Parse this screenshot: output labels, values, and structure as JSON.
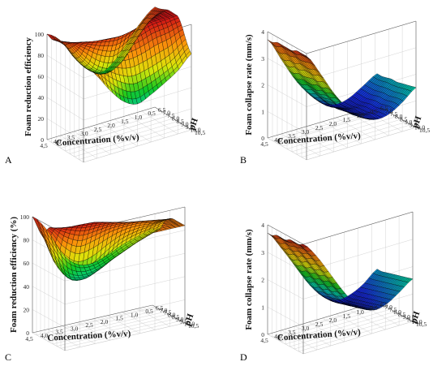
{
  "chart_data": [
    {
      "id": "A",
      "type": "surface3d",
      "panel_label": "A",
      "xlabel": "Concentration (%v/v)",
      "ylabel": "pH",
      "zlabel": "Foam reduction efficiency",
      "x_ticks": [
        "4,5",
        "4,0",
        "3,5",
        "3,0",
        "2,5",
        "2,0",
        "1,5",
        "1,0",
        "0,5"
      ],
      "y_ticks": [
        "6,5",
        "7,0",
        "7,5",
        "8,0",
        "8,5",
        "9,0",
        "9,5",
        "10,0",
        "10,5"
      ],
      "z_ticks": [
        "0",
        "20",
        "40",
        "60",
        "80",
        "100"
      ],
      "xlim": [
        0.5,
        4.5
      ],
      "ylim": [
        6.5,
        10.5
      ],
      "zlim": [
        0,
        100
      ],
      "surface": {
        "x": [
          4.5,
          4.0,
          3.5,
          3.0,
          2.5,
          2.0,
          1.5,
          1.0,
          0.5
        ],
        "y": [
          6.5,
          7.0,
          7.5,
          8.0,
          8.5,
          9.0,
          9.5,
          10.0,
          10.5
        ],
        "z": [
          [
            100,
            90,
            70,
            55,
            48,
            55,
            70,
            85,
            95
          ],
          [
            98,
            88,
            70,
            56,
            50,
            58,
            74,
            90,
            96
          ],
          [
            99,
            92,
            76,
            62,
            56,
            62,
            78,
            92,
            98
          ],
          [
            100,
            96,
            88,
            80,
            76,
            82,
            92,
            98,
            100
          ],
          [
            100,
            99,
            96,
            94,
            93,
            95,
            99,
            100,
            100
          ],
          [
            100,
            99,
            96,
            94,
            92,
            94,
            98,
            99,
            100
          ],
          [
            98,
            94,
            88,
            82,
            80,
            82,
            86,
            88,
            92
          ],
          [
            95,
            86,
            74,
            64,
            58,
            60,
            64,
            70,
            80
          ],
          [
            92,
            78,
            60,
            46,
            40,
            45,
            52,
            60,
            72
          ]
        ]
      }
    },
    {
      "id": "B",
      "type": "surface3d",
      "panel_label": "B",
      "xlabel": "Concentration (%v/v)",
      "ylabel": "pH",
      "zlabel": "Foam collapse rate (mm/s)",
      "x_ticks": [
        "4,5",
        "4,0",
        "3,5",
        "3,0",
        "2,5",
        "2,0",
        "1,5",
        "1,0",
        "0,5"
      ],
      "y_ticks": [
        "6,5",
        "7,0",
        "7,5",
        "8,0",
        "8,5",
        "9,0",
        "9,5",
        "10,0",
        "10,5"
      ],
      "z_ticks": [
        "0",
        "1",
        "2",
        "3",
        "4"
      ],
      "xlim": [
        0.5,
        4.5
      ],
      "ylim": [
        6.5,
        10.5
      ],
      "zlim": [
        0,
        4
      ],
      "surface": {
        "x": [
          4.5,
          4.0,
          3.5,
          3.0,
          2.5,
          2.0,
          1.5,
          1.0,
          0.5
        ],
        "y": [
          6.5,
          7.0,
          7.5,
          8.0,
          8.5,
          9.0,
          9.5,
          10.0,
          10.5
        ],
        "z": [
          [
            3.7,
            2.8,
            1.9,
            1.2,
            0.7,
            0.5,
            0.6,
            0.9,
            1.2
          ],
          [
            3.7,
            2.8,
            1.9,
            1.2,
            0.7,
            0.5,
            0.6,
            0.9,
            1.2
          ],
          [
            3.8,
            2.9,
            2.0,
            1.3,
            0.8,
            0.55,
            0.6,
            0.9,
            1.25
          ],
          [
            3.8,
            2.9,
            2.0,
            1.3,
            0.8,
            0.6,
            0.65,
            0.95,
            1.3
          ],
          [
            3.8,
            3.0,
            2.0,
            1.35,
            0.85,
            0.6,
            0.7,
            1.0,
            1.3
          ],
          [
            3.8,
            3.0,
            2.1,
            1.4,
            0.9,
            0.65,
            0.7,
            1.0,
            1.35
          ],
          [
            3.9,
            3.0,
            2.1,
            1.4,
            0.9,
            0.7,
            0.75,
            1.05,
            1.4
          ],
          [
            3.9,
            3.1,
            2.2,
            1.5,
            0.95,
            0.7,
            0.8,
            1.1,
            1.45
          ],
          [
            3.9,
            3.1,
            2.2,
            1.5,
            1.0,
            0.75,
            0.8,
            1.1,
            1.5
          ]
        ]
      }
    },
    {
      "id": "C",
      "type": "surface3d",
      "panel_label": "C",
      "xlabel": "Concentration (%v/v)",
      "ylabel": "pH",
      "zlabel": "Foam reduction efficiency (%)",
      "x_ticks": [
        "4,5",
        "4,0",
        "3,5",
        "3,0",
        "2,5",
        "2,0",
        "1,5",
        "1,0",
        "0,5"
      ],
      "y_ticks": [
        "6,5",
        "7,0",
        "7,5",
        "8,0",
        "8,5",
        "9,0",
        "9,5",
        "10,0",
        "10,5"
      ],
      "z_ticks": [
        "0",
        "20",
        "40",
        "60",
        "80",
        "100"
      ],
      "xlim": [
        0.5,
        4.5
      ],
      "ylim": [
        6.5,
        10.5
      ],
      "zlim": [
        0,
        100
      ],
      "surface": {
        "x": [
          4.5,
          4.0,
          3.5,
          3.0,
          2.5,
          2.0,
          1.5,
          1.0,
          0.5
        ],
        "y": [
          6.5,
          7.0,
          7.5,
          8.0,
          8.5,
          9.0,
          9.5,
          10.0,
          10.5
        ],
        "z": [
          [
            100,
            85,
            62,
            50,
            48,
            52,
            58,
            62,
            66
          ],
          [
            95,
            70,
            48,
            42,
            44,
            50,
            56,
            62,
            66
          ],
          [
            90,
            60,
            44,
            42,
            48,
            56,
            62,
            66,
            70
          ],
          [
            92,
            68,
            54,
            54,
            62,
            70,
            74,
            76,
            78
          ],
          [
            98,
            84,
            76,
            78,
            82,
            84,
            84,
            82,
            82
          ],
          [
            100,
            96,
            92,
            92,
            92,
            90,
            88,
            86,
            84
          ],
          [
            100,
            100,
            100,
            98,
            94,
            90,
            88,
            86,
            84
          ],
          [
            98,
            100,
            100,
            96,
            90,
            88,
            86,
            85,
            84
          ],
          [
            92,
            96,
            98,
            92,
            86,
            85,
            84,
            84,
            84
          ]
        ]
      }
    },
    {
      "id": "D",
      "type": "surface3d",
      "panel_label": "D",
      "xlabel": "Concentration (%v/v)",
      "ylabel": "pH",
      "zlabel": "Foam collapse rate (mm/s)",
      "x_ticks": [
        "4,5",
        "4,0",
        "3,5",
        "3,0",
        "2,5",
        "2,0",
        "1,5",
        "1,0",
        "0,5"
      ],
      "y_ticks": [
        "6,5",
        "7,0",
        "7,5",
        "8,0",
        "8,5",
        "9,0",
        "9,5",
        "10,0",
        "10,5"
      ],
      "z_ticks": [
        "0",
        "1",
        "2",
        "3",
        "4"
      ],
      "xlim": [
        0.5,
        4.5
      ],
      "ylim": [
        6.5,
        10.5
      ],
      "zlim": [
        0,
        4
      ],
      "surface": {
        "x": [
          4.5,
          4.0,
          3.5,
          3.0,
          2.5,
          2.0,
          1.5,
          1.0,
          0.5
        ],
        "y": [
          6.5,
          7.0,
          7.5,
          8.0,
          8.5,
          9.0,
          9.5,
          10.0,
          10.5
        ],
        "z": [
          [
            3.7,
            3.0,
            2.2,
            1.4,
            0.8,
            0.5,
            0.55,
            0.8,
            1.2
          ],
          [
            3.7,
            3.0,
            2.2,
            1.4,
            0.8,
            0.5,
            0.55,
            0.85,
            1.2
          ],
          [
            3.8,
            3.1,
            2.3,
            1.5,
            0.85,
            0.55,
            0.6,
            0.9,
            1.25
          ],
          [
            3.8,
            3.1,
            2.3,
            1.5,
            0.9,
            0.6,
            0.65,
            0.95,
            1.3
          ],
          [
            3.8,
            3.2,
            2.4,
            1.6,
            0.95,
            0.65,
            0.7,
            1.0,
            1.35
          ],
          [
            3.9,
            3.2,
            2.4,
            1.6,
            1.0,
            0.7,
            0.75,
            1.05,
            1.4
          ],
          [
            3.9,
            3.3,
            2.5,
            1.7,
            1.05,
            0.75,
            0.8,
            1.1,
            1.45
          ],
          [
            3.9,
            3.3,
            2.5,
            1.7,
            1.1,
            0.8,
            0.85,
            1.15,
            1.5
          ],
          [
            4.0,
            3.4,
            2.6,
            1.8,
            1.15,
            0.85,
            0.9,
            1.2,
            1.55
          ]
        ]
      }
    }
  ]
}
